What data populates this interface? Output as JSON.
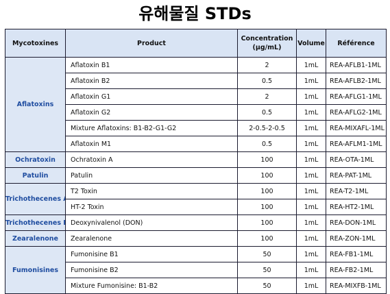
{
  "title": "유해물질 STDs",
  "headers": {
    "category": "Mycotoxines",
    "product": "Product",
    "concentration": "Concentration (μg/mL)",
    "volume": "Volume",
    "reference": "Référence"
  },
  "groups": [
    {
      "category": "Aflatoxins",
      "rows": [
        {
          "product": "Aflatoxin B1",
          "concentration": "2",
          "volume": "1mL",
          "reference": "REA-AFLB1-1ML"
        },
        {
          "product": "Aflatoxin B2",
          "concentration": "0.5",
          "volume": "1mL",
          "reference": "REA-AFLB2-1ML"
        },
        {
          "product": "Aflatoxin G1",
          "concentration": "2",
          "volume": "1mL",
          "reference": "REA-AFLG1-1ML"
        },
        {
          "product": "Aflatoxin G2",
          "concentration": "0.5",
          "volume": "1mL",
          "reference": "REA-AFLG2-1ML"
        },
        {
          "product": "Mixture Aflatoxins: B1-B2-G1-G2",
          "concentration": "2-0.5-2-0.5",
          "volume": "1mL",
          "reference": "REA-MIXAFL-1ML"
        },
        {
          "product": "Aflatoxin M1",
          "concentration": "0.5",
          "volume": "1mL",
          "reference": "REA-AFLM1-1ML"
        }
      ]
    },
    {
      "category": "Ochratoxin",
      "rows": [
        {
          "product": "Ochratoxin A",
          "concentration": "100",
          "volume": "1mL",
          "reference": "REA-OTA-1ML"
        }
      ]
    },
    {
      "category": "Patulin",
      "rows": [
        {
          "product": "Patulin",
          "concentration": "100",
          "volume": "1mL",
          "reference": "REA-PAT-1ML"
        }
      ]
    },
    {
      "category": "Trichothecenes A",
      "rows": [
        {
          "product": "T2 Toxin",
          "concentration": "100",
          "volume": "1mL",
          "reference": "REA-T2-1ML"
        },
        {
          "product": "HT-2 Toxin",
          "concentration": "100",
          "volume": "1mL",
          "reference": "REA-HT2-1ML"
        }
      ]
    },
    {
      "category": "Trichothecenes B",
      "rows": [
        {
          "product": "Deoxynivalenol (DON)",
          "concentration": "100",
          "volume": "1mL",
          "reference": "REA-DON-1ML"
        }
      ]
    },
    {
      "category": "Zearalenone",
      "rows": [
        {
          "product": "Zearalenone",
          "concentration": "100",
          "volume": "1mL",
          "reference": "REA-ZON-1ML"
        }
      ]
    },
    {
      "category": "Fumonisines",
      "rows": [
        {
          "product": "Fumonisine B1",
          "concentration": "50",
          "volume": "1mL",
          "reference": "REA-FB1-1ML"
        },
        {
          "product": "Fumonisine B2",
          "concentration": "50",
          "volume": "1mL",
          "reference": "REA-FB2-1ML"
        },
        {
          "product": "Mixture Fumonisine: B1-B2",
          "concentration": "50",
          "volume": "1mL",
          "reference": "REA-MIXFB-1ML"
        }
      ]
    }
  ]
}
